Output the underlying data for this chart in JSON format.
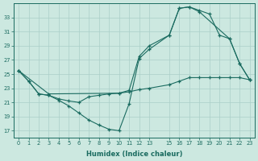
{
  "xlabel": "Humidex (Indice chaleur)",
  "ylabel": "",
  "bg_color": "#cce8e0",
  "grid_color": "#aacfc8",
  "line_color": "#1a6b60",
  "xlim": [
    -0.5,
    23.5
  ],
  "ylim": [
    16,
    35
  ],
  "xticks": [
    0,
    1,
    2,
    3,
    4,
    5,
    6,
    7,
    8,
    9,
    10,
    11,
    12,
    13,
    15,
    16,
    17,
    18,
    19,
    20,
    21,
    22,
    23
  ],
  "yticks": [
    17,
    19,
    21,
    23,
    25,
    27,
    29,
    31,
    33
  ],
  "series": [
    {
      "x": [
        0,
        3,
        10,
        11,
        12,
        13,
        15,
        16,
        17,
        18,
        19,
        20,
        21,
        22,
        23
      ],
      "y": [
        25.5,
        22.2,
        22.3,
        22.7,
        27.5,
        29.0,
        30.5,
        34.3,
        34.5,
        34.0,
        33.5,
        30.5,
        30.0,
        26.5,
        24.2
      ]
    },
    {
      "x": [
        0,
        1,
        2,
        3,
        4,
        5,
        6,
        7,
        8,
        9,
        10,
        11,
        12,
        13,
        15,
        16,
        17,
        18,
        19,
        20,
        21,
        22,
        23
      ],
      "y": [
        25.5,
        24.0,
        22.2,
        22.0,
        21.5,
        21.2,
        21.0,
        21.8,
        22.0,
        22.2,
        22.3,
        22.5,
        22.8,
        23.0,
        23.5,
        24.0,
        24.5,
        24.5,
        24.5,
        24.5,
        24.5,
        24.5,
        24.2
      ]
    },
    {
      "x": [
        0,
        1,
        2,
        3,
        4,
        5,
        6,
        7,
        8,
        9,
        10,
        11,
        12,
        13,
        15,
        16,
        17,
        18,
        21,
        22,
        23
      ],
      "y": [
        25.5,
        24.0,
        22.2,
        22.0,
        21.3,
        20.5,
        19.5,
        18.5,
        17.8,
        17.2,
        17.0,
        20.8,
        27.2,
        28.5,
        30.5,
        34.3,
        34.5,
        33.8,
        30.0,
        26.5,
        24.2
      ]
    }
  ]
}
